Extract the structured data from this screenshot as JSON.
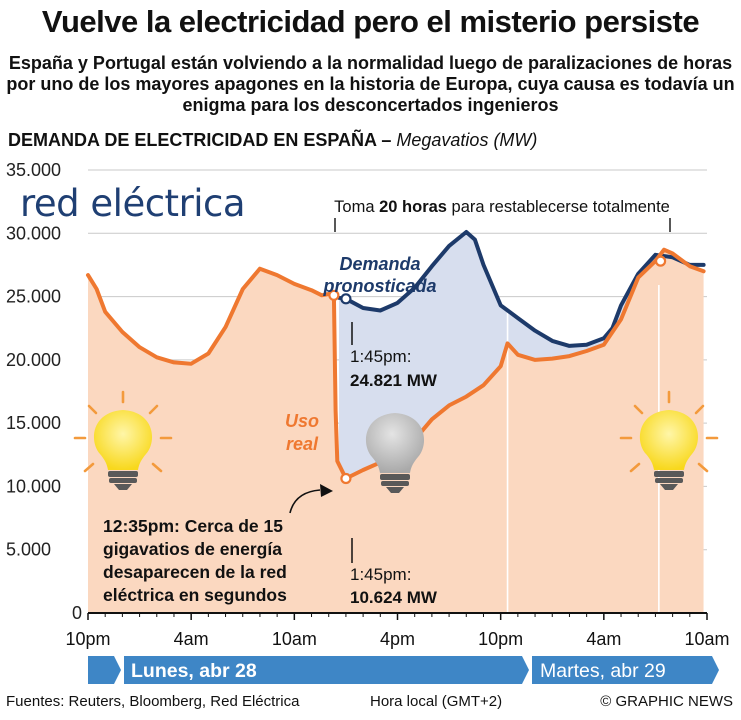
{
  "title": "Vuelve la electricidad pero el misterio persiste",
  "subtitle": "España y Portugal están volviendo a la normalidad luego de paralizaciones de horas por uno de los mayores apagones en la historia de Europa, cuya causa es todavía un enigma para los desconcertados ingenieros",
  "heading": {
    "main": "DEMANDA DE ELECTRICIDAD EN ESPAÑA –",
    "unit": "Megavatios (MW)"
  },
  "logo": "red eléctrica",
  "bracket": {
    "pre": "Toma ",
    "bold": "20 horas",
    "post": " para restablecerse totalmente"
  },
  "labels": {
    "forecast_line1": "Demanda",
    "forecast_line2": "pronosticada",
    "actual_line1": "Uso",
    "actual_line2": "real",
    "upper_time": "1:45pm:",
    "upper_value": "24.821 MW",
    "lower_time": "1:45pm:",
    "lower_value": "10.624 MW",
    "drop_note": [
      "12:35pm: Cerca de 15",
      "gigavatios de energía",
      "desaparecen de la red",
      "eléctrica en segundos"
    ]
  },
  "days": {
    "monday": "Lunes, abr 28",
    "tuesday": "Martes, abr 29"
  },
  "footer": {
    "sources": "Fuentes: Reuters, Bloomberg, Red Eléctrica",
    "timezone": "Hora local (GMT+2)",
    "credit": "© GRAPHIC NEWS"
  },
  "colors": {
    "actual": "#ef7830",
    "actual_fill": "#fbd8c0",
    "forecast": "#1d3a6a",
    "forecast_fill": "#d7deee",
    "grid": "#c9c9c9",
    "day_bar": "#3e86c6",
    "logo": "#1f3f73",
    "bulb_on": "#f8d81c",
    "bulb_off": "#b5b5b5"
  },
  "chart_data": {
    "type": "line",
    "x_unit": "hours since 10pm Apr 27",
    "x_ticks": [
      "10pm",
      "4am",
      "10am",
      "4pm",
      "10pm",
      "4am",
      "10am"
    ],
    "y_ticks": [
      "0",
      "5.000",
      "10.000",
      "15.000",
      "20.000",
      "25.000",
      "30.000",
      "35.000"
    ],
    "ylim": [
      0,
      35000
    ],
    "xlim": [
      0,
      36
    ],
    "series": [
      {
        "name": "Demanda pronosticada",
        "points": [
          [
            14.6,
            24900
          ],
          [
            15.0,
            24821
          ],
          [
            16.0,
            24100
          ],
          [
            17.0,
            23900
          ],
          [
            18.0,
            24500
          ],
          [
            19.0,
            25700
          ],
          [
            20.0,
            27400
          ],
          [
            21.0,
            29000
          ],
          [
            22.0,
            30100
          ],
          [
            22.5,
            29500
          ],
          [
            23.0,
            27500
          ],
          [
            24.0,
            24300
          ],
          [
            25.0,
            23300
          ],
          [
            26.0,
            22300
          ],
          [
            27.0,
            21500
          ],
          [
            28.0,
            21100
          ],
          [
            29.0,
            21200
          ],
          [
            30.0,
            21700
          ],
          [
            30.5,
            22500
          ],
          [
            31.0,
            24300
          ],
          [
            32.0,
            26800
          ],
          [
            33.0,
            28300
          ],
          [
            34.0,
            28100
          ],
          [
            35.0,
            27500
          ],
          [
            35.8,
            27500
          ]
        ]
      },
      {
        "name": "Uso real",
        "points": [
          [
            0,
            26700
          ],
          [
            0.5,
            25600
          ],
          [
            1.0,
            23800
          ],
          [
            2.0,
            22200
          ],
          [
            3.0,
            21000
          ],
          [
            4.0,
            20200
          ],
          [
            5.0,
            19800
          ],
          [
            6.0,
            19700
          ],
          [
            7.0,
            20500
          ],
          [
            8.0,
            22600
          ],
          [
            9.0,
            25600
          ],
          [
            10.0,
            27200
          ],
          [
            11.0,
            26700
          ],
          [
            12.0,
            26000
          ],
          [
            13.0,
            25500
          ],
          [
            13.6,
            25100
          ],
          [
            14.0,
            25200
          ],
          [
            14.3,
            25100
          ],
          [
            14.4,
            16000
          ],
          [
            14.5,
            12000
          ],
          [
            15.0,
            10624
          ],
          [
            16.0,
            11300
          ],
          [
            17.0,
            11900
          ],
          [
            18.0,
            12600
          ],
          [
            19.0,
            13700
          ],
          [
            20.0,
            15300
          ],
          [
            21.0,
            16400
          ],
          [
            22.0,
            17100
          ],
          [
            23.0,
            18000
          ],
          [
            24.0,
            19500
          ],
          [
            24.4,
            21300
          ],
          [
            25.0,
            20400
          ],
          [
            26.0,
            20000
          ],
          [
            27.0,
            20100
          ],
          [
            28.0,
            20300
          ],
          [
            29.0,
            20700
          ],
          [
            30.0,
            21200
          ],
          [
            31.0,
            23200
          ],
          [
            32.0,
            26500
          ],
          [
            33.0,
            27800
          ],
          [
            33.5,
            28700
          ],
          [
            34.0,
            28400
          ],
          [
            35.0,
            27400
          ],
          [
            35.8,
            27000
          ]
        ]
      }
    ]
  }
}
